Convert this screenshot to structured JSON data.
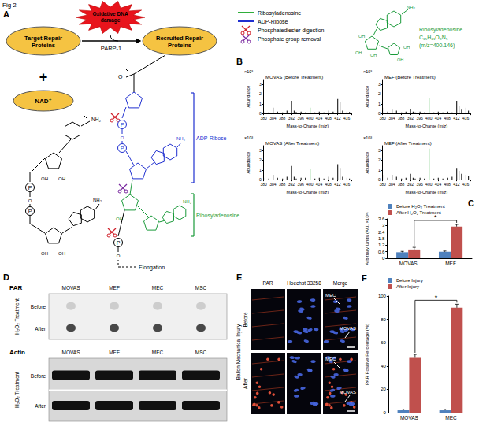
{
  "figure_title": "Fig 2",
  "panel_labels": [
    "A",
    "B",
    "C",
    "D",
    "E",
    "F"
  ],
  "panel_a": {
    "target": "Target Repair Proteins",
    "recruited": "Recruited Repair Proteins",
    "damage": "Oxidative DNA damage",
    "enzyme": "PARP-1",
    "plus": "+",
    "nad": "NAD⁺",
    "atoms": {
      "amine": "NH₂",
      "hydroxyl": "OH",
      "phosphate": "P",
      "oxygen": "O"
    },
    "brackets": [
      {
        "label": "ADP-Ribose",
        "color": "#1f2fd0"
      },
      {
        "label": "Ribosyladenosine",
        "color": "#1a9a3a"
      }
    ],
    "elongation": "Elongation"
  },
  "legend": [
    {
      "label": "Ribosyladenosine",
      "color": "#2fae3a",
      "marker": "line"
    },
    {
      "label": "ADP-Ribose",
      "color": "#1f2fd0",
      "marker": "line"
    },
    {
      "label": "Phosphatediester digestion",
      "color": "#d0202a",
      "marker": "scissors"
    },
    {
      "label": "Phosphate group removal",
      "color": "#7a2aa0",
      "marker": "scissors"
    }
  ],
  "molecule": {
    "name": "Ribosyladenosine",
    "formula": "C₁₅H₂₁O₈N₅",
    "mz": "(m/z=400.146)",
    "color": "#1a9a3a"
  },
  "chart_data": [
    {
      "type": "bar",
      "title": "MOVAS (Before Treatment)",
      "x_label": "Mass-to-Charge (m/z)",
      "y_label": "Abundance",
      "y_scale_label": "×10³",
      "x": [
        380.6,
        382.2,
        384.1,
        386.0,
        388.2,
        390.1,
        392.1,
        393.2,
        394.1,
        396.2,
        398.1,
        400.146,
        402.2,
        404.1,
        406.1,
        408.2,
        410.1,
        412.1,
        413.1,
        414.2,
        416.1,
        417.2
      ],
      "values": [
        0.2,
        0.1,
        0.6,
        0.2,
        0.1,
        0.3,
        1.3,
        0.3,
        0.15,
        0.2,
        0.1,
        0.6,
        0.1,
        0.2,
        0.1,
        0.3,
        0.2,
        1.5,
        1.2,
        0.3,
        0.2,
        0.15
      ],
      "colors": [
        "#000000",
        "#000000",
        "#000000",
        "#000000",
        "#000000",
        "#000000",
        "#000000",
        "#000000",
        "#000000",
        "#000000",
        "#000000",
        "#2fae3a",
        "#000000",
        "#000000",
        "#000000",
        "#000000",
        "#000000",
        "#000000",
        "#000000",
        "#000000",
        "#000000",
        "#000000"
      ],
      "xlim": [
        380,
        418
      ],
      "xticks": [
        380,
        384,
        388,
        392,
        396,
        400,
        404,
        408,
        412,
        416
      ],
      "ylim": [
        0,
        3.5
      ],
      "yticks": [
        0,
        1,
        2,
        3
      ],
      "grid": false
    },
    {
      "type": "bar",
      "title": "MEF (Before Treatment)",
      "x_label": "Mass-to-Charge (m/z)",
      "y_label": "Abundance",
      "y_scale_label": "×10³",
      "x": [
        380.6,
        382.2,
        384.1,
        386.0,
        388.2,
        390.1,
        392.1,
        393.2,
        394.1,
        396.2,
        398.1,
        400.146,
        402.2,
        404.1,
        406.1,
        408.2,
        410.1,
        412.1,
        413.1,
        414.2,
        416.1,
        417.2
      ],
      "values": [
        0.6,
        0.2,
        0.4,
        0.3,
        0.1,
        0.2,
        0.5,
        0.2,
        0.1,
        0.2,
        0.1,
        1.6,
        0.1,
        0.2,
        0.1,
        0.2,
        0.1,
        1.3,
        0.8,
        0.4,
        0.6,
        0.3
      ],
      "colors": [
        "#000000",
        "#000000",
        "#000000",
        "#000000",
        "#000000",
        "#000000",
        "#000000",
        "#000000",
        "#000000",
        "#000000",
        "#000000",
        "#2fae3a",
        "#000000",
        "#000000",
        "#000000",
        "#000000",
        "#000000",
        "#000000",
        "#000000",
        "#000000",
        "#000000",
        "#000000"
      ],
      "xlim": [
        380,
        418
      ],
      "xticks": [
        380,
        384,
        388,
        392,
        396,
        400,
        404,
        408,
        412,
        416
      ],
      "ylim": [
        0,
        3.5
      ],
      "yticks": [
        0,
        1,
        2,
        3
      ],
      "grid": false
    },
    {
      "type": "bar",
      "title": "MOVAS (After Treatment)",
      "x_label": "Mass-to-Charge (m/z)",
      "y_label": "Abundance",
      "y_scale_label": "×10³",
      "x": [
        380.6,
        382.2,
        384.1,
        386.0,
        388.2,
        390.1,
        392.1,
        393.2,
        394.1,
        396.2,
        398.1,
        400.146,
        402.2,
        404.1,
        406.1,
        408.2,
        410.1,
        412.1,
        413.1,
        414.2,
        416.1,
        417.2
      ],
      "values": [
        0.2,
        0.1,
        0.5,
        0.2,
        0.1,
        0.3,
        1.4,
        0.3,
        0.1,
        0.2,
        0.2,
        1.1,
        0.1,
        0.2,
        0.1,
        0.3,
        0.2,
        1.6,
        1.2,
        0.3,
        0.2,
        0.1
      ],
      "colors": [
        "#000000",
        "#000000",
        "#000000",
        "#000000",
        "#000000",
        "#000000",
        "#000000",
        "#000000",
        "#000000",
        "#000000",
        "#000000",
        "#2fae3a",
        "#000000",
        "#000000",
        "#000000",
        "#000000",
        "#000000",
        "#000000",
        "#000000",
        "#000000",
        "#000000",
        "#000000"
      ],
      "xlim": [
        380,
        418
      ],
      "xticks": [
        380,
        384,
        388,
        392,
        396,
        400,
        404,
        408,
        412,
        416
      ],
      "ylim": [
        0,
        3.5
      ],
      "yticks": [
        0,
        1,
        2,
        3
      ],
      "grid": false
    },
    {
      "type": "bar",
      "title": "MEF (After Treatment)",
      "x_label": "Mass-to-Charge (m/z)",
      "y_label": "Abundance",
      "y_scale_label": "×10³",
      "x": [
        380.6,
        382.2,
        384.1,
        386.0,
        388.2,
        390.1,
        392.1,
        393.2,
        394.1,
        396.2,
        398.1,
        400.146,
        402.2,
        404.1,
        406.1,
        408.2,
        410.1,
        412.1,
        413.1,
        414.2,
        416.1,
        417.2
      ],
      "values": [
        0.5,
        0.2,
        0.5,
        0.3,
        0.1,
        0.2,
        0.6,
        0.2,
        0.1,
        0.2,
        0.1,
        3.2,
        0.1,
        0.2,
        0.1,
        0.2,
        0.3,
        1.2,
        0.9,
        0.6,
        0.5,
        0.4
      ],
      "colors": [
        "#000000",
        "#000000",
        "#000000",
        "#000000",
        "#000000",
        "#000000",
        "#000000",
        "#000000",
        "#000000",
        "#000000",
        "#000000",
        "#2fae3a",
        "#000000",
        "#000000",
        "#000000",
        "#000000",
        "#000000",
        "#000000",
        "#000000",
        "#000000",
        "#000000",
        "#000000"
      ],
      "xlim": [
        380,
        418
      ],
      "xticks": [
        380,
        384,
        388,
        392,
        396,
        400,
        404,
        408,
        412,
        416
      ],
      "ylim": [
        0,
        3.5
      ],
      "yticks": [
        0,
        1,
        2,
        3
      ],
      "grid": false
    },
    {
      "type": "bar",
      "y_label": "Arbitrary Units (AU, ×10³)",
      "categories": [
        "MOVAS",
        "MEF"
      ],
      "series": [
        {
          "name": "Before H₂O₂ Treatment",
          "color": "#4f81bd",
          "values": [
            0.55,
            0.6
          ],
          "errors": [
            0.08,
            0.06
          ]
        },
        {
          "name": "After H₂O₂ Treatment",
          "color": "#c0504d",
          "values": [
            0.8,
            2.9
          ],
          "errors": [
            0.2,
            0.2
          ]
        }
      ],
      "ylim": [
        0,
        3.6
      ],
      "yticks": [
        0,
        0.6,
        1.2,
        1.8,
        2.4,
        3,
        3.6
      ],
      "legend": "upper left",
      "grid": false,
      "annotation": "*"
    },
    {
      "type": "bar",
      "y_label": "PAR Positive Percentage (%)",
      "categories": [
        "MOVAS",
        "MEC"
      ],
      "series": [
        {
          "name": "Before Injury",
          "color": "#4f81bd",
          "values": [
            2,
            2
          ],
          "errors": [
            1,
            1
          ]
        },
        {
          "name": "After Injury",
          "color": "#c0504d",
          "values": [
            47,
            90
          ],
          "errors": [
            3,
            3
          ]
        }
      ],
      "ylim": [
        0,
        100
      ],
      "yticks": [
        0,
        20,
        40,
        60,
        80,
        100
      ],
      "legend": "upper left",
      "grid": false,
      "annotation": "*"
    }
  ],
  "panel_d": {
    "blots": [
      "PAR",
      "Actin"
    ],
    "columns": [
      "MOVAS",
      "MEF",
      "MEC",
      "MSC"
    ],
    "treatment": "H₂O₂ Treatment",
    "rows": [
      "Before",
      "After"
    ]
  },
  "panel_e": {
    "columns": [
      "PAR",
      "Hoechst 33258",
      "Merge"
    ],
    "condition": "Ballon Mechanical Injury",
    "rows": [
      "Before",
      "After"
    ],
    "arrows": [
      "MEC",
      "MOVAS"
    ]
  }
}
